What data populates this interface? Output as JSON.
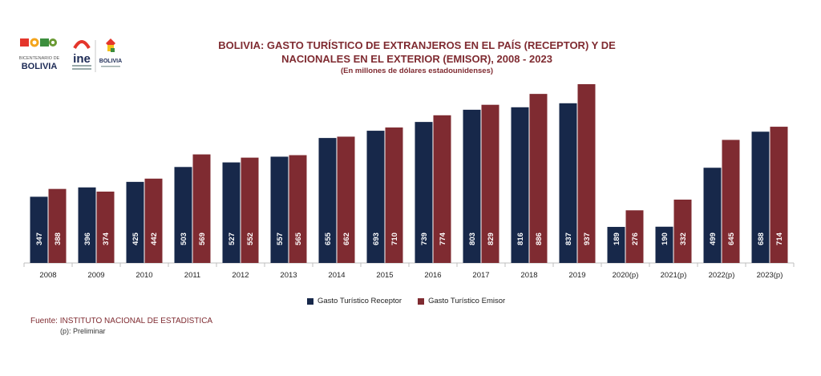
{
  "header": {
    "title_line1": "BOLIVIA: GASTO TURÍSTICO DE EXTRANJEROS EN EL PAÍS (RECEPTOR) Y DE",
    "title_line2": "NACIONALES EN EL EXTERIOR (EMISOR), 2008 - 2023",
    "subtitle": "(En millones de dólares estadounidenses)"
  },
  "logos": {
    "bicentenario_small": "BICENTENARIO DE",
    "bicentenario_big": "BOLIVIA",
    "ine_text": "ine",
    "bolivia_seal_text": "BOLIVIA"
  },
  "chart_data": {
    "type": "bar",
    "categories": [
      "2008",
      "2009",
      "2010",
      "2011",
      "2012",
      "2013",
      "2014",
      "2015",
      "2016",
      "2017",
      "2018",
      "2019",
      "2020(p)",
      "2021(p)",
      "2022(p)",
      "2023(p)"
    ],
    "series": [
      {
        "name": "Gasto Turístico Receptor",
        "color": "#17284a",
        "values": [
          347,
          396,
          425,
          503,
          527,
          557,
          655,
          693,
          739,
          803,
          816,
          837,
          189,
          190,
          499,
          688
        ]
      },
      {
        "name": "Gasto Turístico Emisor",
        "color": "#7f2b31",
        "values": [
          388,
          374,
          442,
          569,
          552,
          565,
          662,
          710,
          774,
          829,
          886,
          937,
          276,
          332,
          645,
          714
        ]
      }
    ],
    "ylim": [
      0,
      937
    ],
    "grid": false,
    "legend_position": "bottom"
  },
  "footer": {
    "source": "Fuente: INSTITUTO NACIONAL DE ESTADISTICA",
    "note": "(p): Preliminar"
  }
}
